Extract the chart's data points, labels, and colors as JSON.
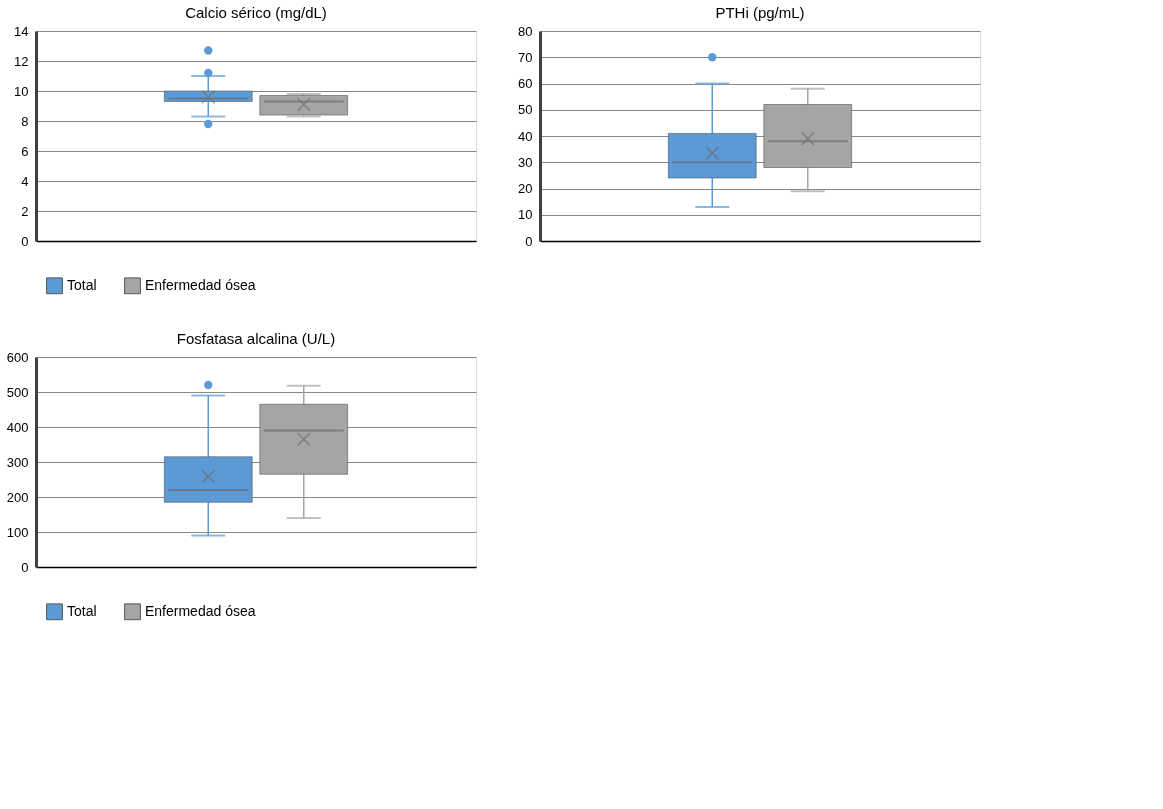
{
  "chart_data": [
    {
      "type": "box",
      "title": "Calcio sérico (mg/dL)",
      "categories": [
        null
      ],
      "ylim": [
        0,
        14
      ],
      "yticks": [
        0,
        2,
        4,
        6,
        8,
        10,
        12,
        14
      ],
      "grid": "y",
      "legend": "bottom",
      "series": [
        {
          "name": "Total",
          "color": "#5b9bd5",
          "boxes": [
            {
              "low": 8.3,
              "q1": 9.3,
              "median": 9.5,
              "q3": 10.0,
              "high": 11.0,
              "mean": 9.6,
              "outliers": [
                12.7,
                11.2,
                7.8
              ]
            }
          ]
        },
        {
          "name": "Enfermedad ósea",
          "color": "#a5a5a5",
          "boxes": [
            {
              "low": 8.3,
              "q1": 8.4,
              "median": 9.3,
              "q3": 9.7,
              "high": 9.8,
              "mean": 9.1
            }
          ]
        }
      ]
    },
    {
      "type": "box",
      "title": "PTHi (pg/mL)",
      "categories": [
        null
      ],
      "ylim": [
        0,
        80
      ],
      "yticks": [
        0,
        10,
        20,
        30,
        40,
        50,
        60,
        70,
        80
      ],
      "grid": "y",
      "legend": "bottom",
      "series": [
        {
          "name": "Total",
          "color": "#5b9bd5",
          "boxes": [
            {
              "low": 13,
              "q1": 24,
              "median": 30,
              "q3": 41,
              "high": 60,
              "mean": 33.5,
              "outliers": [
                70
              ]
            }
          ]
        },
        {
          "name": "Enfermedad ósea",
          "color": "#a5a5a5",
          "boxes": [
            {
              "low": 19,
              "q1": 28,
              "median": 38,
              "q3": 52,
              "high": 58,
              "mean": 39
            }
          ]
        }
      ]
    },
    {
      "type": "box",
      "title": "Fosfatasa alcalina (U/L)",
      "categories": [
        null
      ],
      "ylim": [
        0,
        600
      ],
      "yticks": [
        0,
        100,
        200,
        300,
        400,
        500,
        600
      ],
      "grid": "y",
      "legend": "bottom",
      "series": [
        {
          "name": "Total",
          "color": "#5b9bd5",
          "boxes": [
            {
              "low": 90,
              "q1": 185,
              "median": 220,
              "q3": 315,
              "high": 490,
              "mean": 258,
              "outliers": [
                520
              ]
            }
          ]
        },
        {
          "name": "Enfermedad ósea",
          "color": "#a5a5a5",
          "boxes": [
            {
              "low": 140,
              "q1": 265,
              "median": 390,
              "q3": 465,
              "high": 518,
              "mean": 365
            }
          ]
        }
      ]
    }
  ]
}
